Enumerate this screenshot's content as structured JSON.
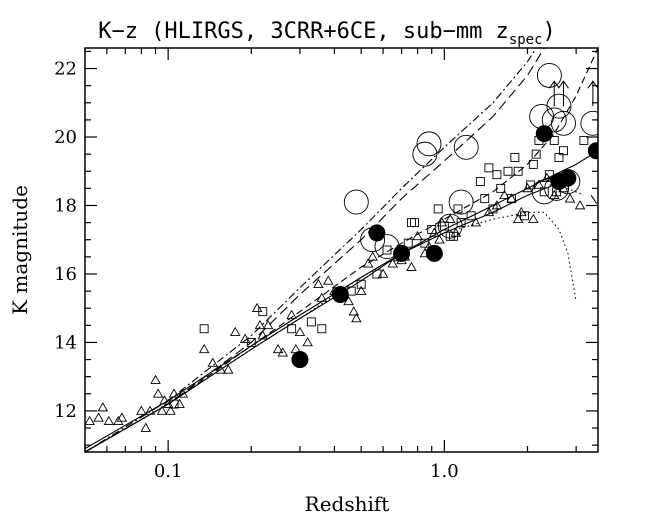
{
  "chart_data": {
    "type": "scatter",
    "title": "K−z (HLIRGS, 3CRR+6CE, sub−mm z",
    "title_subscript": "spec",
    "title_close": ")",
    "xlabel": "Redshift",
    "ylabel": "K magnitude",
    "xscale": "log",
    "xlim": [
      0.05,
      3.6
    ],
    "ylim": [
      10.8,
      22.6
    ],
    "xticks": [
      {
        "value": 0.1,
        "label": "0.1"
      },
      {
        "value": 1.0,
        "label": "1.0"
      }
    ],
    "yticks": [
      {
        "value": 12,
        "label": "12"
      },
      {
        "value": 14,
        "label": "14"
      },
      {
        "value": 16,
        "label": "16"
      },
      {
        "value": 18,
        "label": "18"
      },
      {
        "value": 20,
        "label": "20"
      },
      {
        "value": 22,
        "label": "22"
      }
    ],
    "series": [
      {
        "marker": "open-triangle",
        "points": [
          [
            0.052,
            11.7
          ],
          [
            0.056,
            11.8
          ],
          [
            0.058,
            12.1
          ],
          [
            0.061,
            11.7
          ],
          [
            0.066,
            11.7
          ],
          [
            0.068,
            11.8
          ],
          [
            0.08,
            12.0
          ],
          [
            0.083,
            11.5
          ],
          [
            0.086,
            12.0
          ],
          [
            0.09,
            12.9
          ],
          [
            0.092,
            12.5
          ],
          [
            0.095,
            12.0
          ],
          [
            0.097,
            12.3
          ],
          [
            0.1,
            12.2
          ],
          [
            0.102,
            12.0
          ],
          [
            0.105,
            12.5
          ],
          [
            0.11,
            12.2
          ],
          [
            0.113,
            12.5
          ],
          [
            0.135,
            13.8
          ],
          [
            0.145,
            13.4
          ],
          [
            0.155,
            13.2
          ],
          [
            0.165,
            13.2
          ],
          [
            0.175,
            14.3
          ],
          [
            0.19,
            14.1
          ],
          [
            0.21,
            15.0
          ],
          [
            0.215,
            14.5
          ],
          [
            0.22,
            14.2
          ],
          [
            0.23,
            14.5
          ],
          [
            0.25,
            13.8
          ],
          [
            0.26,
            13.7
          ],
          [
            0.28,
            14.8
          ],
          [
            0.29,
            13.8
          ],
          [
            0.3,
            14.3
          ],
          [
            0.32,
            14.0
          ],
          [
            0.35,
            15.7
          ],
          [
            0.36,
            15.3
          ],
          [
            0.38,
            15.8
          ],
          [
            0.4,
            15.5
          ],
          [
            0.42,
            15.3
          ],
          [
            0.45,
            15.2
          ],
          [
            0.47,
            14.9
          ],
          [
            0.48,
            14.7
          ],
          [
            0.5,
            15.5
          ],
          [
            0.53,
            16.3
          ],
          [
            0.55,
            16.5
          ],
          [
            0.6,
            16.0
          ],
          [
            0.65,
            16.3
          ],
          [
            0.7,
            16.4
          ],
          [
            0.72,
            16.5
          ],
          [
            0.76,
            16.2
          ],
          [
            0.8,
            17.1
          ],
          [
            0.85,
            16.6
          ],
          [
            0.88,
            16.8
          ],
          [
            0.92,
            17.2
          ],
          [
            0.96,
            17.0
          ],
          [
            0.98,
            17.5
          ],
          [
            1.05,
            17.6
          ],
          [
            1.1,
            17.2
          ],
          [
            1.3,
            17.5
          ],
          [
            1.45,
            17.8
          ],
          [
            1.55,
            18.0
          ],
          [
            1.65,
            18.3
          ],
          [
            1.75,
            18.2
          ],
          [
            1.85,
            17.6
          ],
          [
            1.9,
            17.8
          ],
          [
            2.0,
            18.5
          ],
          [
            2.1,
            17.6
          ],
          [
            2.2,
            18.6
          ],
          [
            2.35,
            18.8
          ],
          [
            2.5,
            18.3
          ],
          [
            2.7,
            18.5
          ],
          [
            2.85,
            18.2
          ],
          [
            3.1,
            18.0
          ]
        ]
      },
      {
        "marker": "open-square",
        "points": [
          [
            0.105,
            12.2
          ],
          [
            0.135,
            14.4
          ],
          [
            0.2,
            14.0
          ],
          [
            0.22,
            14.9
          ],
          [
            0.28,
            14.4
          ],
          [
            0.33,
            14.6
          ],
          [
            0.36,
            14.4
          ],
          [
            0.46,
            15.5
          ],
          [
            0.5,
            15.7
          ],
          [
            0.57,
            16.0
          ],
          [
            0.62,
            16.7
          ],
          [
            0.68,
            16.5
          ],
          [
            0.74,
            16.9
          ],
          [
            0.76,
            17.5
          ],
          [
            0.78,
            17.5
          ],
          [
            0.85,
            16.9
          ],
          [
            0.9,
            17.3
          ],
          [
            0.95,
            17.9
          ],
          [
            1.0,
            17.4
          ],
          [
            1.05,
            17.1
          ],
          [
            1.08,
            17.1
          ],
          [
            1.12,
            17.9
          ],
          [
            1.15,
            17.5
          ],
          [
            1.25,
            17.7
          ],
          [
            1.35,
            18.7
          ],
          [
            1.4,
            18.2
          ],
          [
            1.45,
            19.1
          ],
          [
            1.5,
            17.9
          ],
          [
            1.55,
            18.9
          ],
          [
            1.6,
            18.5
          ],
          [
            1.7,
            19.0
          ],
          [
            1.75,
            18.2
          ],
          [
            1.8,
            19.4
          ],
          [
            1.85,
            19.0
          ],
          [
            1.95,
            17.7
          ],
          [
            2.05,
            18.6
          ],
          [
            2.1,
            19.2
          ],
          [
            2.15,
            19.5
          ],
          [
            2.2,
            19.9
          ],
          [
            2.3,
            18.4
          ],
          [
            2.4,
            18.9
          ],
          [
            2.5,
            19.9
          ],
          [
            2.55,
            18.4
          ],
          [
            2.6,
            19.4
          ],
          [
            2.7,
            19.6
          ],
          [
            2.8,
            18.8
          ],
          [
            3.2,
            19.9
          ]
        ]
      },
      {
        "marker": "open-circle-large",
        "points": [
          [
            0.48,
            18.1
          ],
          [
            0.55,
            17.0
          ],
          [
            0.62,
            16.8
          ],
          [
            0.85,
            19.5
          ],
          [
            0.88,
            19.8
          ],
          [
            1.15,
            18.1
          ],
          [
            1.2,
            19.7
          ],
          [
            1.05,
            17.4
          ],
          [
            2.3,
            18.4
          ],
          [
            2.4,
            21.8
          ],
          [
            2.5,
            20.5
          ],
          [
            2.55,
            18.5
          ],
          [
            2.6,
            20.9
          ],
          [
            2.7,
            20.4
          ],
          [
            2.8,
            18.7
          ],
          [
            3.45,
            20.4
          ],
          [
            2.25,
            20.6
          ]
        ]
      },
      {
        "marker": "filled-circle",
        "points": [
          [
            0.3,
            13.5
          ],
          [
            0.42,
            15.4
          ],
          [
            0.57,
            17.2
          ],
          [
            0.7,
            16.6
          ],
          [
            0.92,
            16.6
          ],
          [
            2.3,
            20.1
          ],
          [
            2.6,
            18.7
          ],
          [
            2.8,
            18.8
          ],
          [
            3.55,
            19.6
          ]
        ]
      }
    ],
    "lower_limit_arrows": [
      [
        2.5,
        20.9
      ],
      [
        2.7,
        20.9
      ],
      [
        3.45,
        20.9
      ]
    ],
    "model_curves": [
      {
        "style": "solid",
        "points": [
          [
            0.05,
            10.8
          ],
          [
            0.1,
            12.2
          ],
          [
            0.2,
            13.8
          ],
          [
            0.3,
            14.7
          ],
          [
            0.5,
            15.8
          ],
          [
            0.7,
            16.6
          ],
          [
            1.0,
            17.3
          ],
          [
            1.5,
            18.0
          ],
          [
            2.0,
            18.5
          ],
          [
            2.5,
            18.9
          ],
          [
            3.0,
            19.2
          ],
          [
            3.6,
            19.6
          ]
        ]
      },
      {
        "style": "solid",
        "points": [
          [
            0.05,
            10.9
          ],
          [
            0.1,
            12.3
          ],
          [
            0.2,
            13.9
          ],
          [
            0.3,
            14.8
          ],
          [
            0.5,
            15.9
          ],
          [
            0.7,
            16.6
          ],
          [
            1.0,
            17.2
          ],
          [
            1.5,
            17.8
          ],
          [
            2.0,
            18.3
          ],
          [
            2.5,
            18.6
          ],
          [
            3.0,
            18.8
          ]
        ]
      },
      {
        "style": "dashed",
        "points": [
          [
            0.05,
            10.8
          ],
          [
            0.1,
            12.2
          ],
          [
            0.2,
            13.9
          ],
          [
            0.3,
            14.9
          ],
          [
            0.5,
            16.2
          ],
          [
            0.7,
            16.9
          ],
          [
            1.0,
            17.6
          ],
          [
            1.5,
            18.4
          ],
          [
            2.0,
            19.2
          ],
          [
            2.5,
            20.1
          ],
          [
            3.0,
            21.2
          ],
          [
            3.6,
            22.6
          ]
        ]
      },
      {
        "style": "dashed-long",
        "points": [
          [
            0.05,
            10.8
          ],
          [
            0.1,
            12.2
          ],
          [
            0.2,
            14.0
          ],
          [
            0.3,
            15.4
          ],
          [
            0.5,
            17.0
          ],
          [
            0.7,
            18.2
          ],
          [
            1.0,
            19.3
          ],
          [
            1.5,
            20.6
          ],
          [
            2.0,
            21.8
          ],
          [
            2.3,
            22.6
          ]
        ]
      },
      {
        "style": "dash-dot",
        "points": [
          [
            0.05,
            10.8
          ],
          [
            0.1,
            12.3
          ],
          [
            0.2,
            14.2
          ],
          [
            0.3,
            15.6
          ],
          [
            0.5,
            17.3
          ],
          [
            0.7,
            18.5
          ],
          [
            1.0,
            19.7
          ],
          [
            1.5,
            21.0
          ],
          [
            2.0,
            22.2
          ],
          [
            2.15,
            22.6
          ]
        ]
      },
      {
        "style": "dotted",
        "points": [
          [
            0.05,
            10.8
          ],
          [
            0.1,
            12.2
          ],
          [
            0.2,
            13.8
          ],
          [
            0.3,
            14.7
          ],
          [
            0.5,
            15.9
          ],
          [
            0.7,
            16.6
          ],
          [
            1.0,
            17.2
          ],
          [
            1.5,
            17.6
          ],
          [
            2.0,
            17.8
          ],
          [
            2.3,
            17.8
          ],
          [
            2.6,
            17.3
          ],
          [
            2.8,
            16.6
          ],
          [
            3.0,
            15.2
          ]
        ]
      },
      {
        "style": "dotted",
        "points": [
          [
            2.4,
            18.6
          ],
          [
            2.8,
            18.5
          ],
          [
            3.2,
            18.3
          ]
        ]
      },
      {
        "style": "long-dash-short",
        "points": [
          [
            3.4,
            18.3
          ],
          [
            3.6,
            18.0
          ]
        ]
      }
    ]
  }
}
